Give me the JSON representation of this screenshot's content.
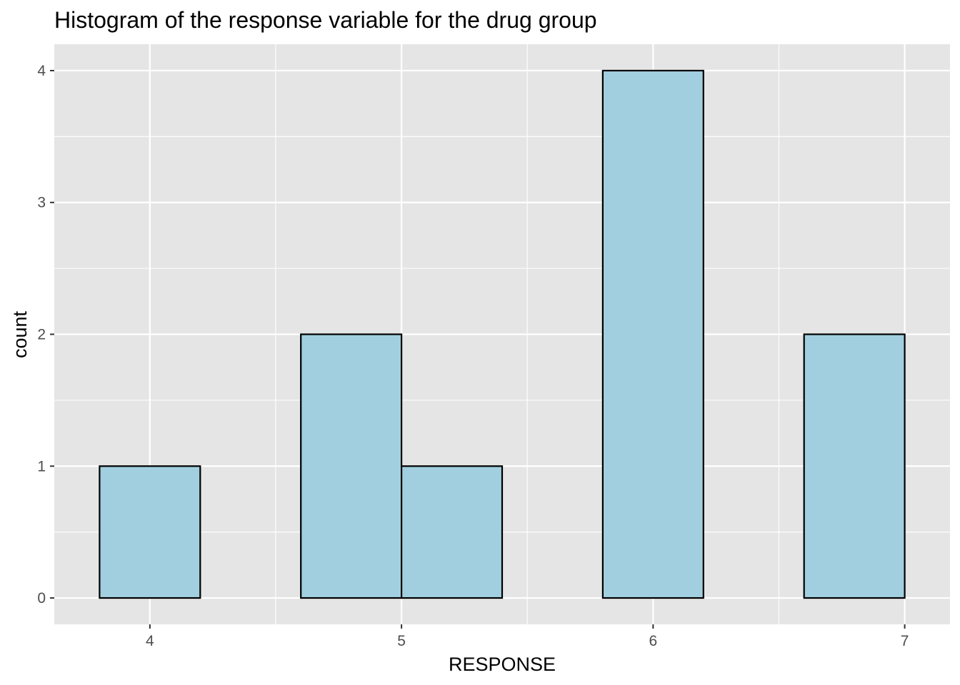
{
  "chart_data": {
    "type": "bar",
    "title": "Histogram of the response variable for the drug group",
    "xlabel": "RESPONSE",
    "ylabel": "count",
    "bin_width": 0.4,
    "bins": [
      {
        "x_start": 3.8,
        "x_end": 4.2,
        "count": 1
      },
      {
        "x_start": 4.2,
        "x_end": 4.6,
        "count": 0
      },
      {
        "x_start": 4.6,
        "x_end": 5.0,
        "count": 2
      },
      {
        "x_start": 5.0,
        "x_end": 5.4,
        "count": 1
      },
      {
        "x_start": 5.4,
        "x_end": 5.8,
        "count": 0
      },
      {
        "x_start": 5.8,
        "x_end": 6.2,
        "count": 4
      },
      {
        "x_start": 6.2,
        "x_end": 6.6,
        "count": 0
      },
      {
        "x_start": 6.6,
        "x_end": 7.0,
        "count": 2
      }
    ],
    "x_ticks": [
      4,
      5,
      6,
      7
    ],
    "x_tick_labels": [
      "4",
      "5",
      "6",
      "7"
    ],
    "y_ticks": [
      0,
      1,
      2,
      3,
      4
    ],
    "y_tick_labels": [
      "0",
      "1",
      "2",
      "3",
      "4"
    ],
    "xlim": [
      3.62,
      7.18
    ],
    "ylim": [
      -0.2,
      4.2
    ],
    "grid": true,
    "legend": "none",
    "colors": {
      "bar_fill": "#a1cfe0",
      "bar_outline": "#000000",
      "panel_background": "#e5e5e5",
      "grid_line": "#ffffff",
      "tick_label": "#4d4d4d"
    }
  }
}
